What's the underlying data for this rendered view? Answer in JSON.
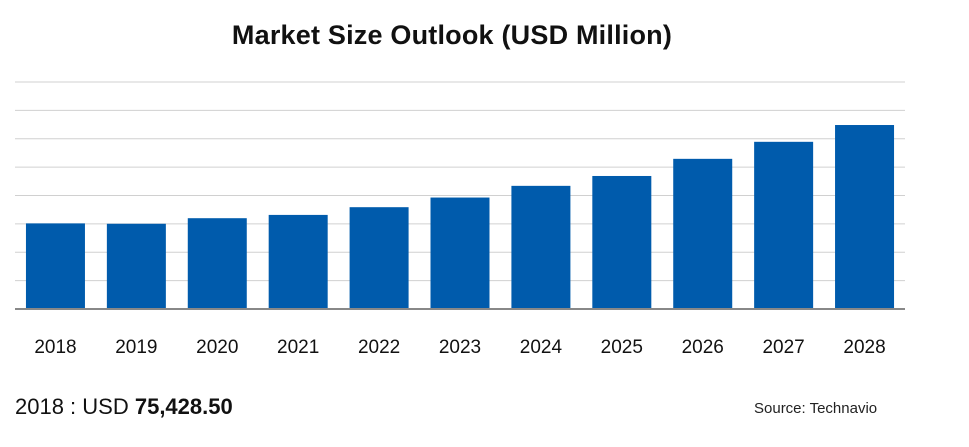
{
  "chart_data": {
    "type": "bar",
    "title": "Market Size Outlook (USD Million)",
    "categories": [
      "2018",
      "2019",
      "2020",
      "2021",
      "2022",
      "2023",
      "2024",
      "2025",
      "2026",
      "2027",
      "2028"
    ],
    "values": [
      75428.5,
      75100,
      80000,
      82900,
      89700,
      98200,
      108500,
      117200,
      132300,
      147300,
      162100
    ],
    "ylim": [
      0,
      200000
    ],
    "grid": true,
    "bar_color": "#005bac",
    "grid_color": "#d0d0d0",
    "axis_color": "#888888"
  },
  "footer": {
    "base_year_label": "2018 : USD ",
    "base_year_value": "75,428.50",
    "source": "Source: Technavio"
  }
}
